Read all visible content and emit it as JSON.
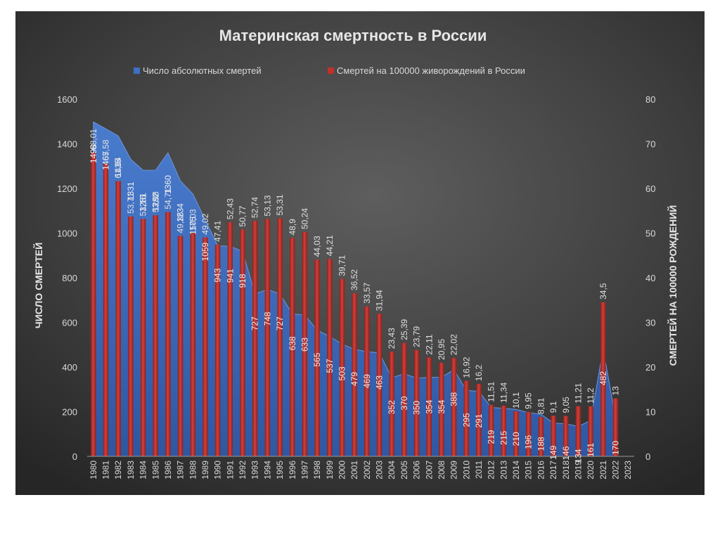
{
  "chart_data": {
    "type": "bar",
    "title": "Материнская смертность в России",
    "ylabel_left": "ЧИСЛО СМЕРТЕЙ",
    "ylabel_right": "СМЕРТЕЙ НА 100000 РОЖДЕНИЙ",
    "ylim_left": [
      0,
      1600
    ],
    "yticks_left": [
      0,
      200,
      400,
      600,
      800,
      1000,
      1200,
      1400,
      1600
    ],
    "ylim_right": [
      0,
      80
    ],
    "yticks_right": [
      0,
      10,
      20,
      30,
      40,
      50,
      60,
      70,
      80
    ],
    "legend_position": "top",
    "grid": false,
    "categories": [
      "1980",
      "1981",
      "1982",
      "1983",
      "1984",
      "1985",
      "1986",
      "1987",
      "1988",
      "1989",
      "1990",
      "1991",
      "1992",
      "1993",
      "1994",
      "1995",
      "1996",
      "1997",
      "1998",
      "1999",
      "2000",
      "2001",
      "2002",
      "2003",
      "2004",
      "2005",
      "2006",
      "2007",
      "2008",
      "2009",
      "2010",
      "2011",
      "2012",
      "2013",
      "2014",
      "2015",
      "2016",
      "2017",
      "2018",
      "2019",
      "2020",
      "2021",
      "2022",
      "2023"
    ],
    "series": [
      {
        "name": "Число абсолютных смертей",
        "kind": "area",
        "axis": "left",
        "color": "#3d6fc4",
        "values": [
          1498,
          1467,
          1435,
          1331,
          1281,
          1282,
          1360,
          1234,
          1175,
          1059,
          943,
          941,
          918,
          727,
          748,
          727,
          638,
          633,
          565,
          537,
          503,
          479,
          469,
          463,
          352,
          370,
          350,
          354,
          354,
          388,
          295,
          291,
          219,
          215,
          210,
          196,
          188,
          149,
          146,
          134,
          161,
          482,
          170,
          null
        ],
        "labels": [
          "1498",
          "1467",
          "1435",
          "1331",
          "1281",
          "1282",
          "1360",
          "1234",
          "1175",
          "1059",
          "943",
          "941",
          "918",
          "727",
          "748",
          "727",
          "638",
          "633",
          "565",
          "537",
          "503",
          "479",
          "469",
          "463",
          "352",
          "370",
          "350",
          "354",
          "354",
          "388",
          "295",
          "291",
          "219",
          "215",
          "210",
          "196",
          "188",
          "149",
          "146",
          "134",
          "161",
          "482",
          "170",
          ""
        ]
      },
      {
        "name": "Смертей на 100000 живорождений в России",
        "kind": "bar",
        "axis": "right",
        "color": "#c0302c",
        "values": [
          68.01,
          65.58,
          61.64,
          53.71,
          53.16,
          53.98,
          54.71,
          49.36,
          50.03,
          49.02,
          47.41,
          52.43,
          50.77,
          52.74,
          53.13,
          53.31,
          48.9,
          50.24,
          44.03,
          44.21,
          39.71,
          36.52,
          33.57,
          31.94,
          23.43,
          25.39,
          23.79,
          22.11,
          20.95,
          22.02,
          16.92,
          16.2,
          11.51,
          11.34,
          10.1,
          9.95,
          8.81,
          9.1,
          9.05,
          11.21,
          11.2,
          34.5,
          13,
          null
        ],
        "labels": [
          "68,01",
          "65,58",
          "61,64",
          "53,71",
          "53,16",
          "53,98",
          "54,71",
          "49,36",
          "50,03",
          "49,02",
          "47,41",
          "52,43",
          "50,77",
          "52,74",
          "53,13",
          "53,31",
          "48,9",
          "50,24",
          "44,03",
          "44,21",
          "39,71",
          "36,52",
          "33,57",
          "31,94",
          "23,43",
          "25,39",
          "23,79",
          "22,11",
          "20,95",
          "22,02",
          "16,92",
          "16,2",
          "11,51",
          "11,34",
          "10,1",
          "9,95",
          "8,81",
          "9,1",
          "9,05",
          "11,21",
          "11,2",
          "34,5",
          "13",
          ""
        ]
      }
    ]
  },
  "colors": {
    "background_center": "#5a5a5a",
    "background_edge": "#2a2a2a",
    "text": "#d9d9d9",
    "title": "#e6e6e6",
    "area": "#3d6fc4",
    "bar": "#c0302c"
  }
}
